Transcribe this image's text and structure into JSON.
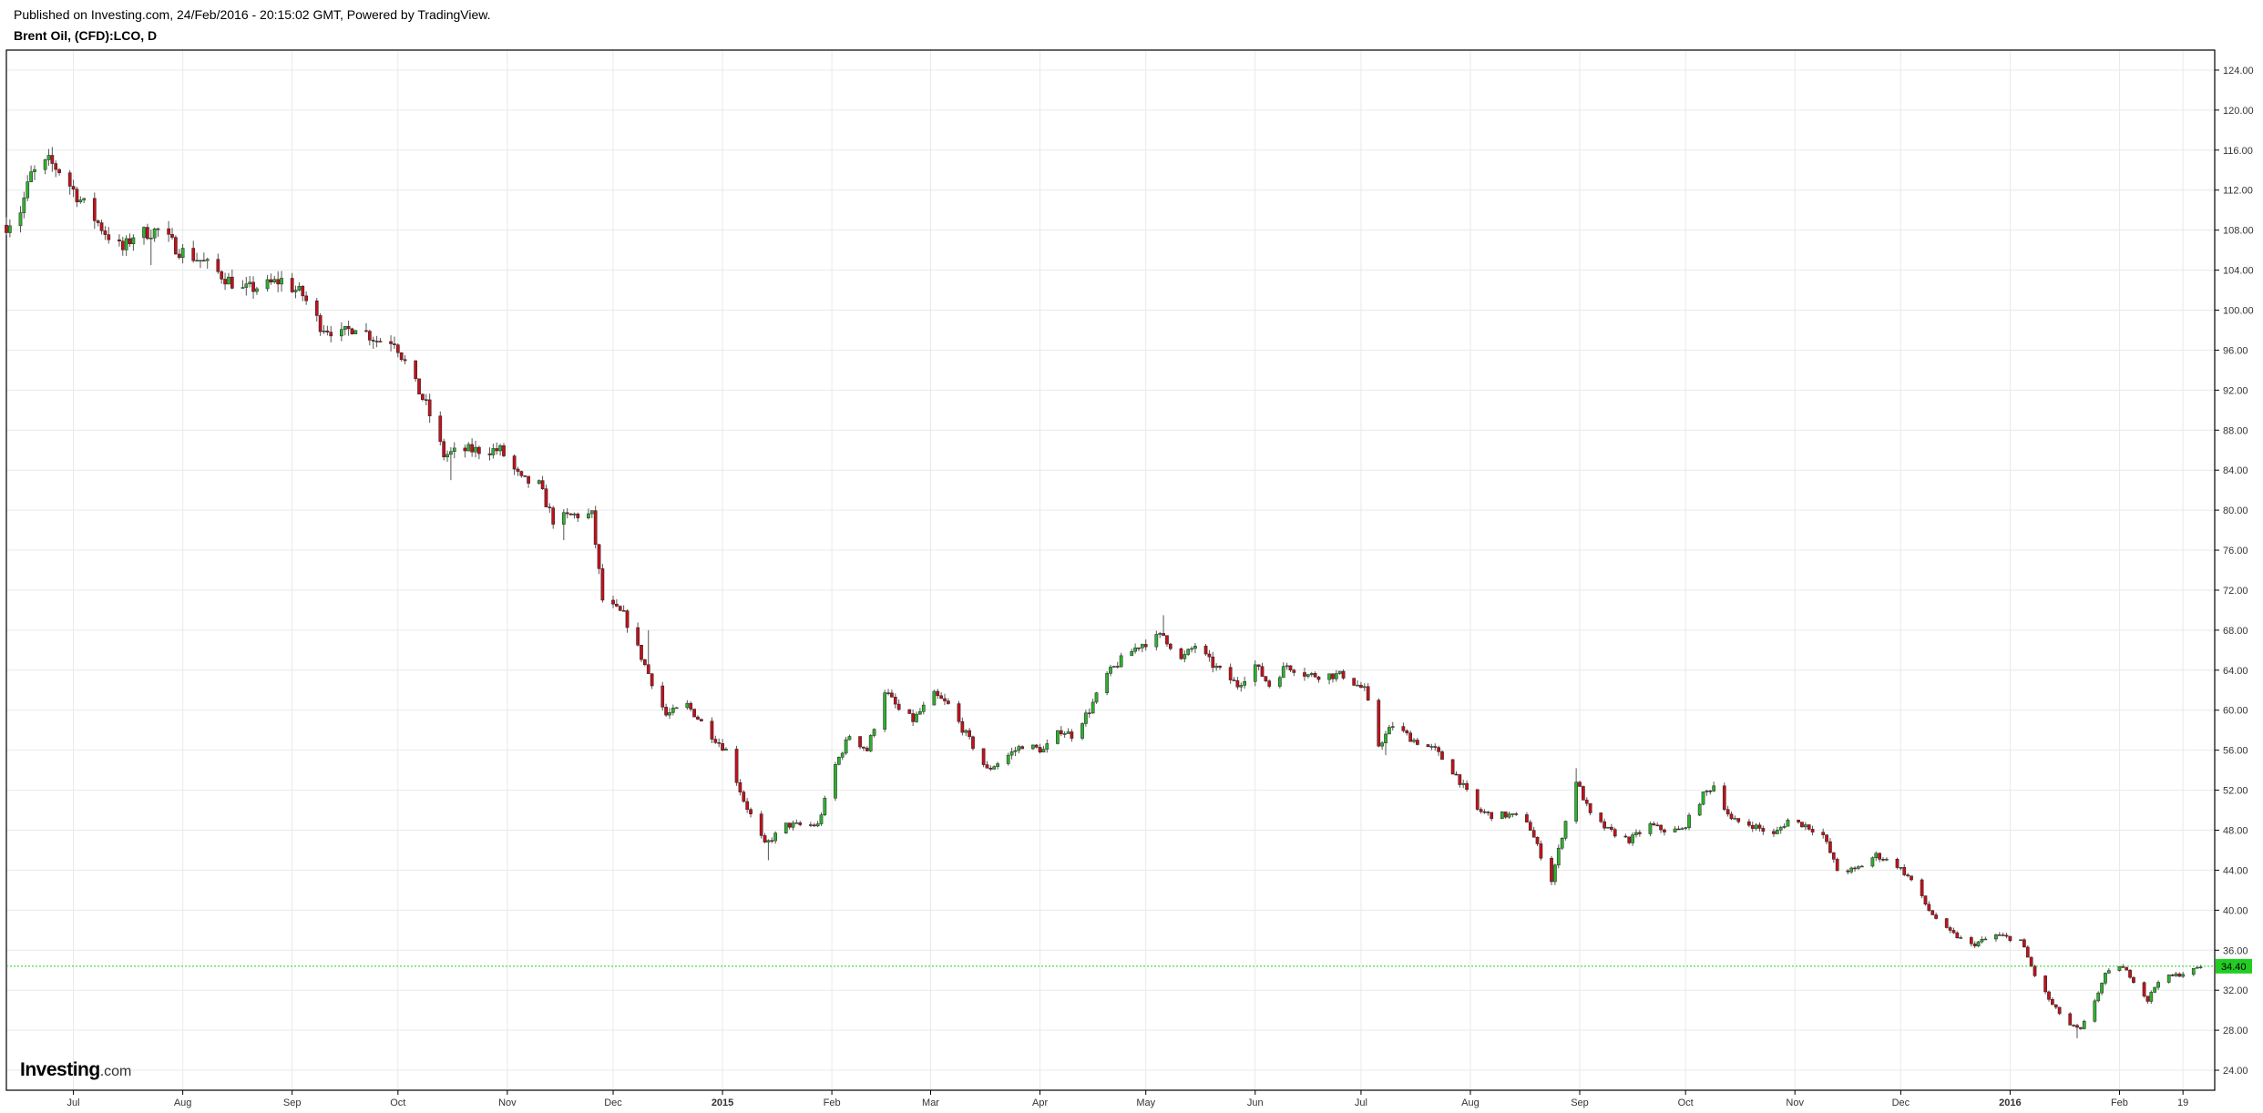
{
  "header": {
    "published": "Published on Investing.com, 24/Feb/2016 - 20:15:02 GMT, Powered by TradingView.",
    "symbol": "Brent Oil, (CFD):LCO, D"
  },
  "logo": {
    "name": "Investing",
    "suffix": ".com"
  },
  "colors": {
    "up": "#2fb02f",
    "down": "#c0121c",
    "grid": "#e9e9e9",
    "last_price": "#22cc22"
  },
  "chart_data": {
    "type": "candlestick",
    "title": "Brent Oil, (CFD):LCO, D",
    "ylim": [
      22.0,
      126.0
    ],
    "y_ticks": [
      24,
      28,
      32,
      36,
      40,
      44,
      48,
      52,
      56,
      60,
      64,
      68,
      72,
      76,
      80,
      84,
      88,
      92,
      96,
      100,
      104,
      108,
      112,
      116,
      120,
      124
    ],
    "y_tick_labels": [
      "24.00",
      "28.00",
      "32.00",
      "36.00",
      "40.00",
      "44.00",
      "48.00",
      "52.00",
      "56.00",
      "60.00",
      "64.00",
      "68.00",
      "72.00",
      "76.00",
      "80.00",
      "84.00",
      "88.00",
      "92.00",
      "96.00",
      "100.00",
      "104.00",
      "108.00",
      "112.00",
      "116.00",
      "120.00",
      "124.00"
    ],
    "x_range": [
      "2014-06-12",
      "2016-02-28"
    ],
    "x_ticks": [
      {
        "date": "2014-07-01",
        "label": "Jul"
      },
      {
        "date": "2014-08-01",
        "label": "Aug"
      },
      {
        "date": "2014-09-01",
        "label": "Sep"
      },
      {
        "date": "2014-10-01",
        "label": "Oct"
      },
      {
        "date": "2014-11-01",
        "label": "Nov"
      },
      {
        "date": "2014-12-01",
        "label": "Dec"
      },
      {
        "date": "2015-01-01",
        "label": "2015"
      },
      {
        "date": "2015-02-01",
        "label": "Feb"
      },
      {
        "date": "2015-03-01",
        "label": "Mar"
      },
      {
        "date": "2015-04-01",
        "label": "Apr"
      },
      {
        "date": "2015-05-01",
        "label": "May"
      },
      {
        "date": "2015-06-01",
        "label": "Jun"
      },
      {
        "date": "2015-07-01",
        "label": "Jul"
      },
      {
        "date": "2015-08-01",
        "label": "Aug"
      },
      {
        "date": "2015-09-01",
        "label": "Sep"
      },
      {
        "date": "2015-10-01",
        "label": "Oct"
      },
      {
        "date": "2015-11-01",
        "label": "Nov"
      },
      {
        "date": "2015-12-01",
        "label": "Dec"
      },
      {
        "date": "2016-01-01",
        "label": "2016"
      },
      {
        "date": "2016-02-01",
        "label": "Feb"
      },
      {
        "date": "2016-02-19",
        "label": "19"
      }
    ],
    "last_price": 34.4,
    "last_price_label": "34.40",
    "close_path": [
      [
        "2014-06-12",
        108.5
      ],
      [
        "2014-06-16",
        110.0
      ],
      [
        "2014-06-19",
        113.5
      ],
      [
        "2014-06-24",
        114.8
      ],
      [
        "2014-06-27",
        114.0
      ],
      [
        "2014-07-03",
        111.0
      ],
      [
        "2014-07-10",
        107.8
      ],
      [
        "2014-07-15",
        106.0
      ],
      [
        "2014-07-18",
        107.5
      ],
      [
        "2014-07-25",
        108.0
      ],
      [
        "2014-07-31",
        106.0
      ],
      [
        "2014-08-06",
        105.0
      ],
      [
        "2014-08-12",
        103.5
      ],
      [
        "2014-08-18",
        102.0
      ],
      [
        "2014-08-25",
        102.5
      ],
      [
        "2014-08-29",
        103.0
      ],
      [
        "2014-09-04",
        101.5
      ],
      [
        "2014-09-09",
        98.5
      ],
      [
        "2014-09-15",
        97.5
      ],
      [
        "2014-09-19",
        98.5
      ],
      [
        "2014-09-25",
        97.0
      ],
      [
        "2014-09-30",
        97.0
      ],
      [
        "2014-10-06",
        92.5
      ],
      [
        "2014-10-09",
        90.5
      ],
      [
        "2014-10-14",
        85.5
      ],
      [
        "2014-10-20",
        86.0
      ],
      [
        "2014-10-24",
        86.0
      ],
      [
        "2014-10-30",
        86.0
      ],
      [
        "2014-11-05",
        83.0
      ],
      [
        "2014-11-10",
        82.5
      ],
      [
        "2014-11-14",
        79.0
      ],
      [
        "2014-11-20",
        79.5
      ],
      [
        "2014-11-25",
        79.5
      ],
      [
        "2014-11-28",
        71.0
      ],
      [
        "2014-12-04",
        69.5
      ],
      [
        "2014-12-10",
        64.5
      ],
      [
        "2014-12-16",
        59.5
      ],
      [
        "2014-12-22",
        60.5
      ],
      [
        "2014-12-29",
        57.5
      ],
      [
        "2015-01-02",
        56.0
      ],
      [
        "2015-01-07",
        51.0
      ],
      [
        "2015-01-13",
        46.5
      ],
      [
        "2015-01-19",
        48.5
      ],
      [
        "2015-01-23",
        48.5
      ],
      [
        "2015-01-28",
        48.5
      ],
      [
        "2015-02-02",
        54.5
      ],
      [
        "2015-02-06",
        57.5
      ],
      [
        "2015-02-11",
        56.0
      ],
      [
        "2015-02-16",
        62.0
      ],
      [
        "2015-02-20",
        60.0
      ],
      [
        "2015-02-24",
        59.0
      ],
      [
        "2015-03-02",
        61.5
      ],
      [
        "2015-03-06",
        60.5
      ],
      [
        "2015-03-12",
        57.0
      ],
      [
        "2015-03-17",
        54.0
      ],
      [
        "2015-03-23",
        55.5
      ],
      [
        "2015-03-27",
        56.5
      ],
      [
        "2015-04-02",
        56.0
      ],
      [
        "2015-04-07",
        58.0
      ],
      [
        "2015-04-10",
        57.5
      ],
      [
        "2015-04-15",
        60.0
      ],
      [
        "2015-04-20",
        63.5
      ],
      [
        "2015-04-24",
        65.0
      ],
      [
        "2015-04-29",
        66.5
      ],
      [
        "2015-05-06",
        67.5
      ],
      [
        "2015-05-11",
        65.0
      ],
      [
        "2015-05-15",
        66.5
      ],
      [
        "2015-05-20",
        64.5
      ],
      [
        "2015-05-27",
        62.5
      ],
      [
        "2015-06-01",
        64.5
      ],
      [
        "2015-06-05",
        62.5
      ],
      [
        "2015-06-10",
        64.5
      ],
      [
        "2015-06-16",
        63.5
      ],
      [
        "2015-06-22",
        63.5
      ],
      [
        "2015-06-26",
        63.5
      ],
      [
        "2015-07-02",
        62.0
      ],
      [
        "2015-07-06",
        56.5
      ],
      [
        "2015-07-10",
        58.5
      ],
      [
        "2015-07-16",
        57.0
      ],
      [
        "2015-07-22",
        56.0
      ],
      [
        "2015-07-28",
        53.5
      ],
      [
        "2015-08-03",
        50.0
      ],
      [
        "2015-08-07",
        49.5
      ],
      [
        "2015-08-12",
        49.5
      ],
      [
        "2015-08-17",
        49.0
      ],
      [
        "2015-08-21",
        45.5
      ],
      [
        "2015-08-24",
        43.0
      ],
      [
        "2015-08-27",
        47.5
      ],
      [
        "2015-08-31",
        53.0
      ],
      [
        "2015-09-04",
        49.5
      ],
      [
        "2015-09-09",
        48.0
      ],
      [
        "2015-09-15",
        47.0
      ],
      [
        "2015-09-21",
        48.5
      ],
      [
        "2015-09-25",
        48.0
      ],
      [
        "2015-09-30",
        48.0
      ],
      [
        "2015-10-06",
        51.5
      ],
      [
        "2015-10-09",
        52.5
      ],
      [
        "2015-10-14",
        49.0
      ],
      [
        "2015-10-20",
        48.5
      ],
      [
        "2015-10-26",
        47.5
      ],
      [
        "2015-10-30",
        49.0
      ],
      [
        "2015-11-04",
        48.5
      ],
      [
        "2015-11-09",
        47.5
      ],
      [
        "2015-11-13",
        44.0
      ],
      [
        "2015-11-18",
        44.0
      ],
      [
        "2015-11-24",
        45.5
      ],
      [
        "2015-11-30",
        44.5
      ],
      [
        "2015-12-04",
        43.0
      ],
      [
        "2015-12-09",
        40.0
      ],
      [
        "2015-12-14",
        38.0
      ],
      [
        "2015-12-21",
        36.5
      ],
      [
        "2015-12-28",
        37.5
      ],
      [
        "2016-01-04",
        37.0
      ],
      [
        "2016-01-08",
        33.5
      ],
      [
        "2016-01-13",
        30.5
      ],
      [
        "2016-01-18",
        28.5
      ],
      [
        "2016-01-21",
        28.0
      ],
      [
        "2016-01-25",
        31.0
      ],
      [
        "2016-01-28",
        33.5
      ],
      [
        "2016-02-01",
        34.5
      ],
      [
        "2016-02-04",
        33.5
      ],
      [
        "2016-02-09",
        31.0
      ],
      [
        "2016-02-12",
        33.0
      ],
      [
        "2016-02-17",
        33.5
      ],
      [
        "2016-02-22",
        34.0
      ],
      [
        "2016-02-24",
        34.4
      ]
    ],
    "spikes": [
      [
        "2014-06-18",
        113.5
      ],
      [
        "2014-07-23",
        104.5
      ],
      [
        "2014-10-16",
        83.0
      ],
      [
        "2014-11-17",
        77.0
      ],
      [
        "2014-12-11",
        68.0
      ],
      [
        "2015-01-14",
        45.0
      ],
      [
        "2015-05-06",
        69.5
      ],
      [
        "2015-07-08",
        55.5
      ],
      [
        "2015-08-24",
        42.5
      ],
      [
        "2015-08-31",
        54.2
      ],
      [
        "2016-01-20",
        27.2
      ]
    ]
  }
}
